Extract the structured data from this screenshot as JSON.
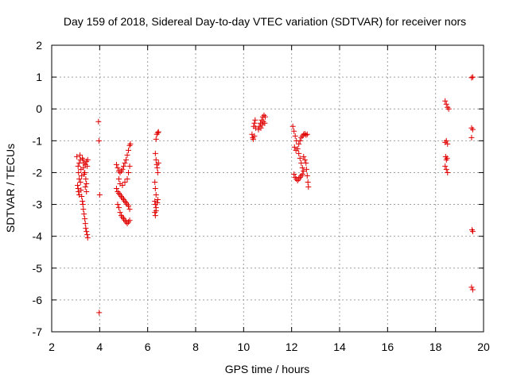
{
  "chart_data": {
    "type": "scatter",
    "title": "Day 159 of 2018, Sidereal Day-to-day VTEC variation (SDTVAR) for receiver nors",
    "xlabel": "GPS time / hours",
    "ylabel": "SDTVAR / TECUs",
    "xlim": [
      2,
      20
    ],
    "ylim": [
      -7,
      2
    ],
    "xticks": [
      "2",
      "4",
      "6",
      "8",
      "10",
      "12",
      "14",
      "16",
      "18",
      "20"
    ],
    "yticks": [
      "-7",
      "-6",
      "-5",
      "-4",
      "-3",
      "-2",
      "-1",
      "0",
      "1",
      "2"
    ],
    "grid": true,
    "marker": "+",
    "color": "#e00000",
    "series": [
      {
        "name": "nors",
        "points": [
          [
            3.05,
            -1.5
          ],
          [
            3.1,
            -1.8
          ],
          [
            3.12,
            -2.0
          ],
          [
            3.15,
            -2.2
          ],
          [
            3.08,
            -2.4
          ],
          [
            3.1,
            -2.5
          ],
          [
            3.12,
            -2.6
          ],
          [
            3.15,
            -2.7
          ],
          [
            3.18,
            -1.45
          ],
          [
            3.2,
            -1.6
          ],
          [
            3.22,
            -1.9
          ],
          [
            3.25,
            -2.1
          ],
          [
            3.2,
            -2.3
          ],
          [
            3.22,
            -2.55
          ],
          [
            3.25,
            -2.75
          ],
          [
            3.28,
            -2.9
          ],
          [
            3.3,
            -3.0
          ],
          [
            3.32,
            -3.15
          ],
          [
            3.35,
            -3.3
          ],
          [
            3.38,
            -3.45
          ],
          [
            3.4,
            -3.6
          ],
          [
            3.42,
            -3.75
          ],
          [
            3.45,
            -3.85
          ],
          [
            3.48,
            -3.95
          ],
          [
            3.5,
            -4.05
          ],
          [
            3.3,
            -1.6
          ],
          [
            3.35,
            -1.7
          ],
          [
            3.4,
            -1.75
          ],
          [
            3.45,
            -1.65
          ],
          [
            3.5,
            -1.6
          ],
          [
            3.38,
            -2.0
          ],
          [
            3.42,
            -2.2
          ],
          [
            3.45,
            -2.35
          ],
          [
            3.28,
            -1.55
          ],
          [
            3.32,
            -1.85
          ],
          [
            3.35,
            -2.05
          ],
          [
            3.4,
            -2.45
          ],
          [
            3.45,
            -2.6
          ],
          [
            3.48,
            -1.8
          ],
          [
            3.15,
            -1.7
          ],
          [
            3.95,
            -0.4
          ],
          [
            3.97,
            -1.0
          ],
          [
            4.0,
            -2.7
          ],
          [
            3.98,
            -6.4
          ],
          [
            4.7,
            -1.75
          ],
          [
            4.75,
            -1.85
          ],
          [
            4.8,
            -1.95
          ],
          [
            4.85,
            -2.0
          ],
          [
            4.9,
            -1.95
          ],
          [
            4.95,
            -1.9
          ],
          [
            5.0,
            -1.8
          ],
          [
            5.05,
            -1.7
          ],
          [
            5.1,
            -1.6
          ],
          [
            5.15,
            -1.45
          ],
          [
            5.2,
            -1.3
          ],
          [
            5.25,
            -1.15
          ],
          [
            5.28,
            -1.1
          ],
          [
            4.7,
            -2.5
          ],
          [
            4.75,
            -2.6
          ],
          [
            4.8,
            -2.65
          ],
          [
            4.85,
            -2.7
          ],
          [
            4.9,
            -2.75
          ],
          [
            4.95,
            -2.8
          ],
          [
            5.0,
            -2.85
          ],
          [
            5.05,
            -2.9
          ],
          [
            5.1,
            -2.95
          ],
          [
            5.15,
            -3.0
          ],
          [
            5.2,
            -3.05
          ],
          [
            5.25,
            -3.15
          ],
          [
            4.75,
            -3.0
          ],
          [
            4.8,
            -3.1
          ],
          [
            4.85,
            -3.25
          ],
          [
            4.9,
            -3.35
          ],
          [
            4.95,
            -3.4
          ],
          [
            5.0,
            -3.45
          ],
          [
            5.05,
            -3.5
          ],
          [
            5.1,
            -3.55
          ],
          [
            5.15,
            -3.6
          ],
          [
            5.2,
            -3.55
          ],
          [
            5.25,
            -3.5
          ],
          [
            4.8,
            -2.2
          ],
          [
            4.85,
            -2.35
          ],
          [
            4.95,
            -2.4
          ],
          [
            5.05,
            -2.3
          ],
          [
            5.15,
            -2.2
          ],
          [
            5.2,
            -2.0
          ],
          [
            5.25,
            -1.8
          ],
          [
            6.35,
            -0.95
          ],
          [
            6.38,
            -0.8
          ],
          [
            6.42,
            -0.75
          ],
          [
            6.45,
            -0.72
          ],
          [
            6.32,
            -1.4
          ],
          [
            6.35,
            -1.6
          ],
          [
            6.38,
            -1.75
          ],
          [
            6.4,
            -1.85
          ],
          [
            6.42,
            -2.0
          ],
          [
            6.45,
            -1.7
          ],
          [
            6.3,
            -2.3
          ],
          [
            6.32,
            -2.5
          ],
          [
            6.35,
            -2.7
          ],
          [
            6.3,
            -2.9
          ],
          [
            6.32,
            -3.0
          ],
          [
            6.35,
            -3.1
          ],
          [
            6.3,
            -3.25
          ],
          [
            6.32,
            -3.35
          ],
          [
            6.35,
            -3.2
          ],
          [
            6.4,
            -2.95
          ],
          [
            6.42,
            -2.85
          ],
          [
            10.35,
            -0.8
          ],
          [
            10.38,
            -0.9
          ],
          [
            10.4,
            -0.95
          ],
          [
            10.45,
            -0.85
          ],
          [
            10.42,
            -0.55
          ],
          [
            10.45,
            -0.45
          ],
          [
            10.48,
            -0.35
          ],
          [
            10.5,
            -0.6
          ],
          [
            10.62,
            -0.65
          ],
          [
            10.65,
            -0.55
          ],
          [
            10.7,
            -0.45
          ],
          [
            10.75,
            -0.35
          ],
          [
            10.8,
            -0.25
          ],
          [
            10.85,
            -0.2
          ],
          [
            10.9,
            -0.25
          ],
          [
            10.72,
            -0.6
          ],
          [
            10.78,
            -0.5
          ],
          [
            10.82,
            -0.4
          ],
          [
            10.88,
            -0.45
          ],
          [
            12.05,
            -0.55
          ],
          [
            12.1,
            -0.7
          ],
          [
            12.15,
            -0.85
          ],
          [
            12.2,
            -1.0
          ],
          [
            12.12,
            -1.2
          ],
          [
            12.18,
            -1.3
          ],
          [
            12.25,
            -1.25
          ],
          [
            12.3,
            -1.1
          ],
          [
            12.35,
            -1.0
          ],
          [
            12.4,
            -0.9
          ],
          [
            12.45,
            -0.85
          ],
          [
            12.5,
            -0.8
          ],
          [
            12.55,
            -0.78
          ],
          [
            12.6,
            -0.82
          ],
          [
            12.65,
            -0.8
          ],
          [
            12.1,
            -2.05
          ],
          [
            12.15,
            -2.15
          ],
          [
            12.2,
            -2.2
          ],
          [
            12.25,
            -2.25
          ],
          [
            12.3,
            -2.2
          ],
          [
            12.35,
            -2.15
          ],
          [
            12.4,
            -2.1
          ],
          [
            12.45,
            -2.05
          ],
          [
            12.5,
            -1.5
          ],
          [
            12.55,
            -1.6
          ],
          [
            12.6,
            -1.7
          ],
          [
            12.62,
            -1.9
          ],
          [
            12.65,
            -2.1
          ],
          [
            12.68,
            -2.3
          ],
          [
            12.7,
            -2.45
          ],
          [
            12.3,
            -1.4
          ],
          [
            12.35,
            -1.55
          ],
          [
            12.4,
            -1.7
          ],
          [
            12.45,
            -1.85
          ],
          [
            12.5,
            -1.95
          ],
          [
            18.4,
            0.25
          ],
          [
            18.45,
            0.15
          ],
          [
            18.5,
            0.05
          ],
          [
            18.55,
            0.0
          ],
          [
            18.4,
            -1.05
          ],
          [
            18.45,
            -1.0
          ],
          [
            18.5,
            -1.1
          ],
          [
            18.42,
            -1.5
          ],
          [
            18.45,
            -1.6
          ],
          [
            18.48,
            -1.55
          ],
          [
            18.4,
            -1.8
          ],
          [
            18.45,
            -1.9
          ],
          [
            18.5,
            -2.0
          ],
          [
            19.5,
            0.98
          ],
          [
            19.55,
            1.0
          ],
          [
            19.5,
            -0.6
          ],
          [
            19.55,
            -0.65
          ],
          [
            19.5,
            -0.9
          ],
          [
            19.52,
            -3.8
          ],
          [
            19.55,
            -3.85
          ],
          [
            19.5,
            -5.6
          ],
          [
            19.55,
            -5.68
          ]
        ]
      }
    ]
  }
}
